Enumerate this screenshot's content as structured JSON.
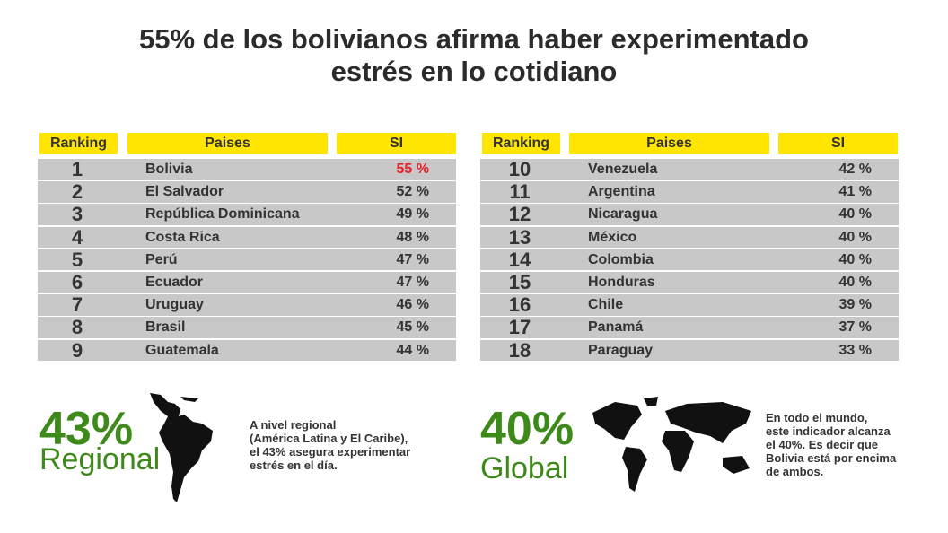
{
  "title_line1": "55% de los bolivianos afirma haber experimentado",
  "title_line2": "estrés en lo cotidiano",
  "headers": {
    "ranking": "Ranking",
    "paises": "Paises",
    "si": "SI"
  },
  "colors": {
    "header": "#ffe500",
    "row": "#c8c8c8",
    "highlight": "#e8202a",
    "green": "#3d8a1a"
  },
  "chart_data": {
    "type": "table",
    "title": "55% de los bolivianos afirma haber experimentado estrés en lo cotidiano",
    "columns": [
      "Ranking",
      "Paises",
      "SI"
    ],
    "left": [
      {
        "rank": "1",
        "country": "Bolivia",
        "value": "55 %",
        "highlight": true
      },
      {
        "rank": "2",
        "country": "El Salvador",
        "value": "52 %"
      },
      {
        "rank": "3",
        "country": "República Dominicana",
        "value": "49 %"
      },
      {
        "rank": "4",
        "country": "Costa Rica",
        "value": "48 %"
      },
      {
        "rank": "5",
        "country": "Perú",
        "value": "47 %"
      },
      {
        "rank": "6",
        "country": "Ecuador",
        "value": "47 %"
      },
      {
        "rank": "7",
        "country": "Uruguay",
        "value": "46 %"
      },
      {
        "rank": "8",
        "country": "Brasil",
        "value": "45 %"
      },
      {
        "rank": "9",
        "country": "Guatemala",
        "value": "44 %"
      }
    ],
    "right": [
      {
        "rank": "10",
        "country": "Venezuela",
        "value": "42 %"
      },
      {
        "rank": "11",
        "country": "Argentina",
        "value": "41 %"
      },
      {
        "rank": "12",
        "country": "Nicaragua",
        "value": "40 %"
      },
      {
        "rank": "13",
        "country": "México",
        "value": "40 %"
      },
      {
        "rank": "14",
        "country": "Colombia",
        "value": "40 %"
      },
      {
        "rank": "15",
        "country": "Honduras",
        "value": "40 %"
      },
      {
        "rank": "16",
        "country": "Chile",
        "value": "39 %"
      },
      {
        "rank": "17",
        "country": "Panamá",
        "value": "37 %"
      },
      {
        "rank": "18",
        "country": "Paraguay",
        "value": "33 %"
      }
    ]
  },
  "regional": {
    "value": "43%",
    "label": "Regional",
    "desc": [
      "A nivel regional",
      "(América Latina y El Caribe),",
      "el 43% asegura experimentar",
      "estrés en el día."
    ]
  },
  "global": {
    "value": "40%",
    "label": "Global",
    "desc": [
      "En todo el mundo,",
      "este indicador alcanza",
      "el 40%. Es decir que",
      "Bolivia está por encima",
      "de ambos."
    ]
  }
}
